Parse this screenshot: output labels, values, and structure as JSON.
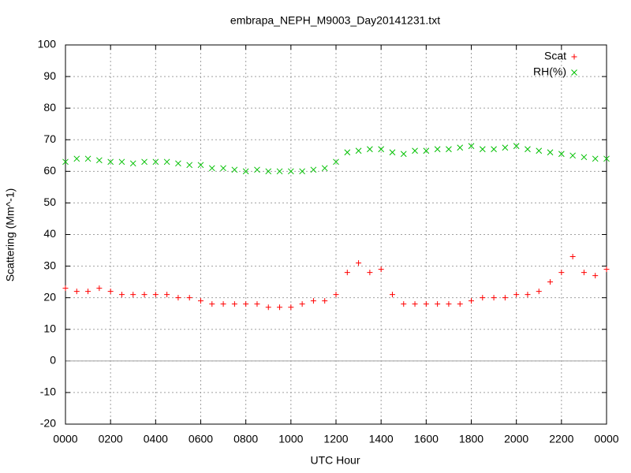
{
  "chart_data": {
    "type": "scatter",
    "title": "embrapa_NEPH_M9003_Day20141231.txt",
    "xlabel": "UTC Hour",
    "ylabel": "Scattering (Mm^-1)",
    "x": [
      0,
      0.5,
      1,
      1.5,
      2,
      2.5,
      3,
      3.5,
      4,
      4.5,
      5,
      5.5,
      6,
      6.5,
      7,
      7.5,
      8,
      8.5,
      9,
      9.5,
      10,
      10.5,
      11,
      11.5,
      12,
      12.5,
      13,
      13.5,
      14,
      14.5,
      15,
      15.5,
      16,
      16.5,
      17,
      17.5,
      18,
      18.5,
      19,
      19.5,
      20,
      20.5,
      21,
      21.5,
      22,
      22.5,
      23,
      23.5,
      24
    ],
    "series": [
      {
        "name": "Scat",
        "color": "#ff0000",
        "marker": "plus",
        "values": [
          23,
          22,
          22,
          23,
          22,
          21,
          21,
          21,
          21,
          21,
          20,
          20,
          19,
          18,
          18,
          18,
          18,
          18,
          17,
          17,
          17,
          18,
          19,
          19,
          21,
          28,
          31,
          28,
          29,
          21,
          18,
          18,
          18,
          18,
          18,
          18,
          19,
          20,
          20,
          20,
          21,
          21,
          22,
          25,
          28,
          33,
          28,
          27,
          29
        ]
      },
      {
        "name": "RH(%)",
        "color": "#00c000",
        "marker": "cross",
        "values": [
          63,
          64,
          64,
          63.5,
          63,
          63,
          62.5,
          63,
          63,
          63,
          62.5,
          62,
          62,
          61,
          61,
          60.5,
          60,
          60.5,
          60,
          60,
          60,
          60,
          60.5,
          61,
          63,
          66,
          66.5,
          67,
          67,
          66,
          65.5,
          66.5,
          66.5,
          67,
          67,
          67.5,
          68,
          67,
          67,
          67.5,
          68,
          67,
          66.5,
          66,
          65.5,
          65,
          64.5,
          64,
          64
        ]
      }
    ],
    "xlim": [
      0,
      24
    ],
    "xticks": [
      {
        "value": 0,
        "label": "0000"
      },
      {
        "value": 2,
        "label": "0200"
      },
      {
        "value": 4,
        "label": "0400"
      },
      {
        "value": 6,
        "label": "0600"
      },
      {
        "value": 8,
        "label": "0800"
      },
      {
        "value": 10,
        "label": "1000"
      },
      {
        "value": 12,
        "label": "1200"
      },
      {
        "value": 14,
        "label": "1400"
      },
      {
        "value": 16,
        "label": "1600"
      },
      {
        "value": 18,
        "label": "1800"
      },
      {
        "value": 20,
        "label": "2000"
      },
      {
        "value": 22,
        "label": "2200"
      },
      {
        "value": 24,
        "label": "0000"
      }
    ],
    "ylim": [
      -20,
      100
    ],
    "yticks": [
      -20,
      -10,
      0,
      10,
      20,
      30,
      40,
      50,
      60,
      70,
      80,
      90,
      100
    ],
    "grid": true,
    "legend": "top-right"
  }
}
